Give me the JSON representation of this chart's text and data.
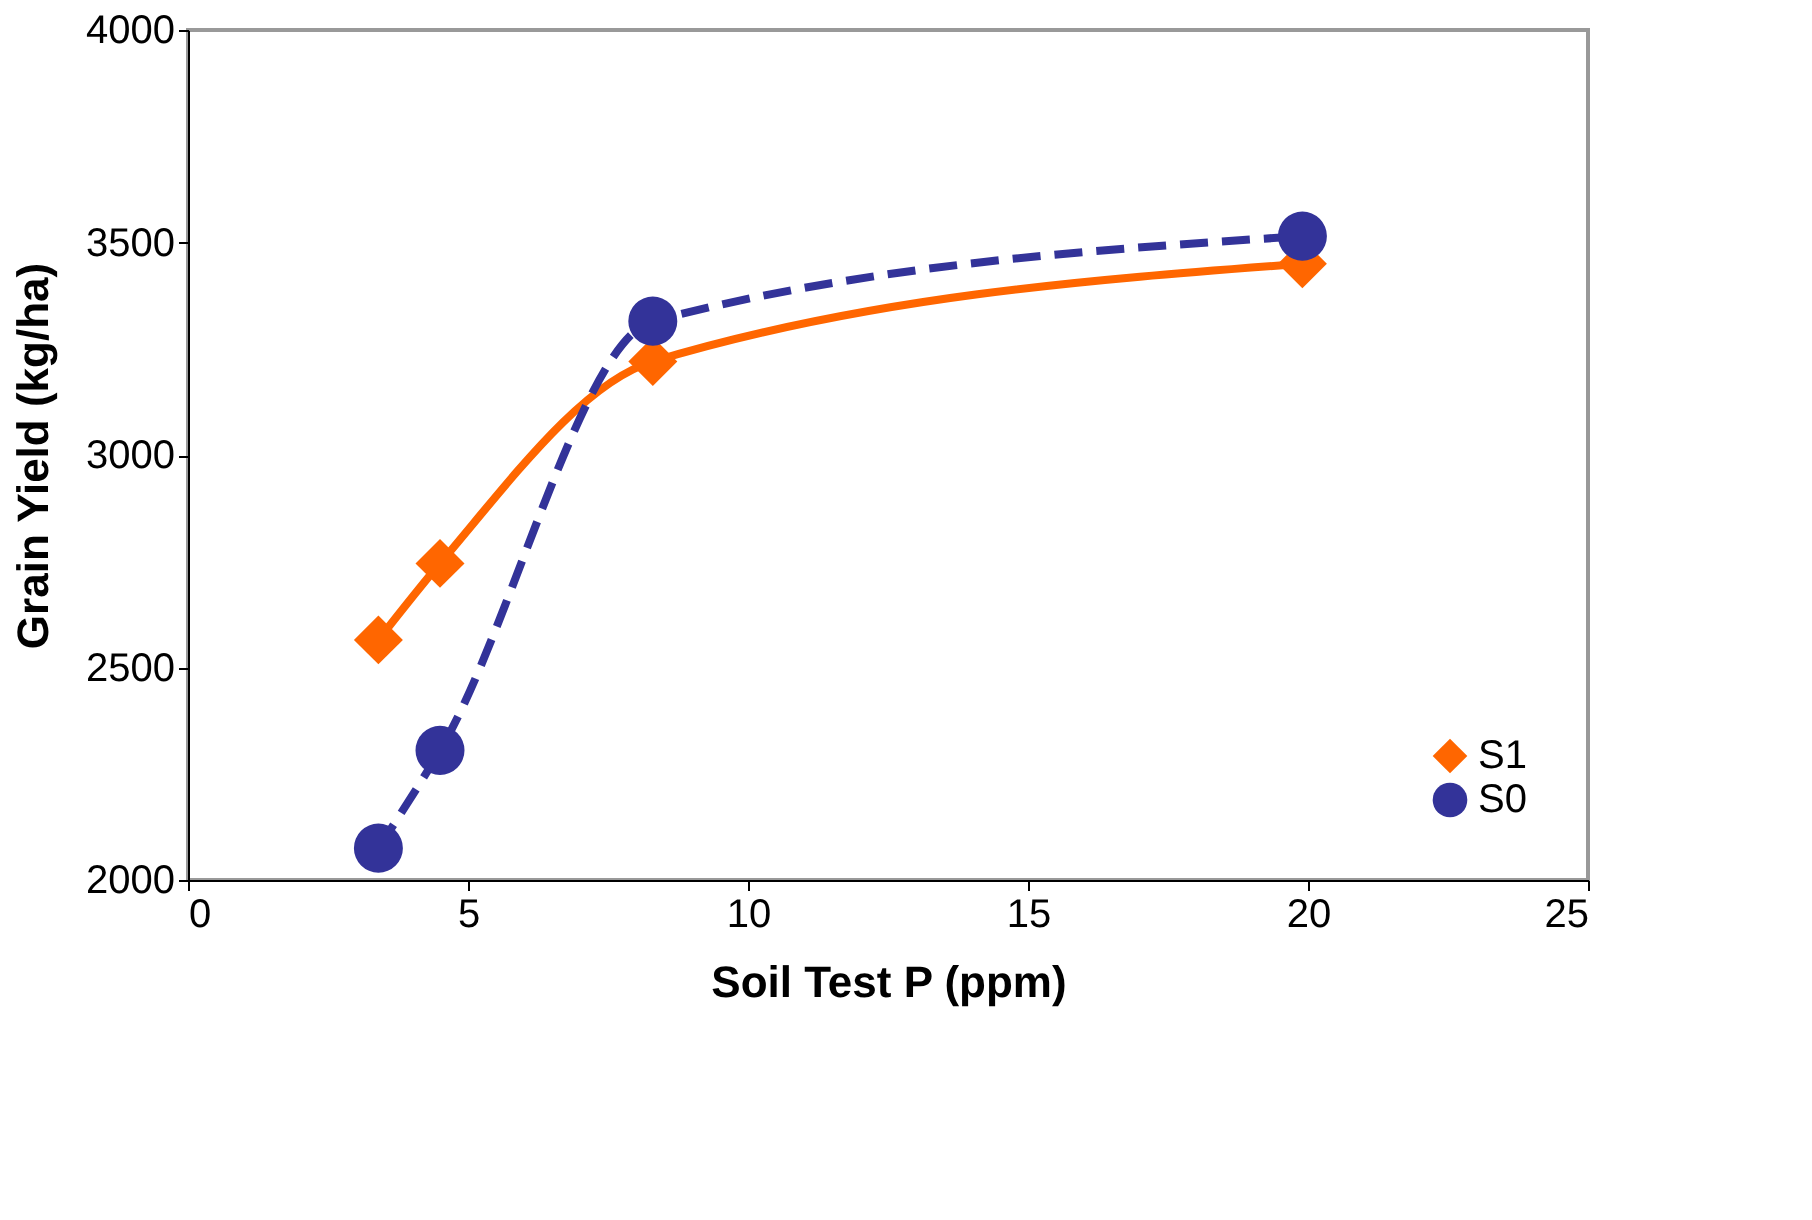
{
  "chart_data": {
    "type": "line",
    "xlabel": "Soil Test P (ppm)",
    "ylabel": "Grain Yield (kg/ha)",
    "xlim": [
      0,
      25
    ],
    "xticks": [
      0,
      5,
      10,
      15,
      20,
      25
    ],
    "ylim": [
      2000,
      4000
    ],
    "yticks": [
      2000,
      2500,
      3000,
      3500,
      4000
    ],
    "grid": false,
    "legend": "bottom right",
    "series": [
      {
        "name": "S1",
        "color": "#ff6600",
        "marker": "diamond",
        "line_style": "solid",
        "x": [
          3.4,
          4.5,
          8.3,
          19.9
        ],
        "values": [
          2565,
          2745,
          3220,
          3450
        ]
      },
      {
        "name": "S0",
        "color": "#333399",
        "marker": "circle",
        "line_style": "dashed",
        "x": [
          3.4,
          4.5,
          8.3,
          19.9
        ],
        "values": [
          2075,
          2305,
          3315,
          3515
        ]
      }
    ]
  }
}
